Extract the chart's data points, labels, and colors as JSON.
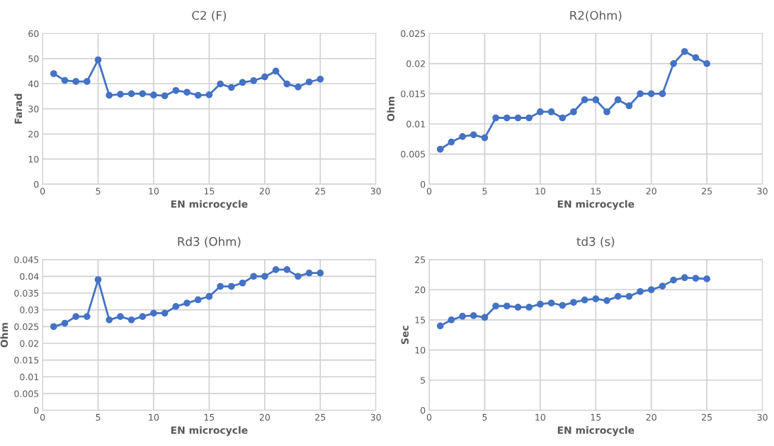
{
  "chart_data": [
    {
      "type": "line",
      "title": "C2 (F)",
      "xlabel": "EN microcycle",
      "ylabel": "Farad",
      "x": [
        1,
        2,
        3,
        4,
        5,
        6,
        7,
        8,
        9,
        10,
        11,
        12,
        13,
        14,
        15,
        16,
        17,
        18,
        19,
        20,
        21,
        22,
        23,
        24,
        25
      ],
      "series": [
        {
          "color": "#4472c4",
          "values": [
            44,
            41.3,
            40.9,
            40.9,
            49.5,
            35.4,
            35.8,
            36,
            36,
            35.5,
            35.2,
            37.3,
            36.6,
            35.4,
            35.6,
            39.9,
            38.5,
            40.5,
            41.2,
            42.7,
            45,
            39.9,
            38.7,
            40.7,
            41.8
          ]
        }
      ],
      "xlim": [
        0,
        30
      ],
      "xticks": [
        0,
        5,
        10,
        15,
        20,
        25,
        30
      ],
      "ylim": [
        0,
        60
      ],
      "yticks": [
        0,
        10,
        20,
        30,
        40,
        50,
        60
      ],
      "grid": true,
      "marker": "circle",
      "line_style": "solid"
    },
    {
      "type": "line",
      "title": "R2(Ohm)",
      "xlabel": "EN microcycle",
      "ylabel": "Ohm",
      "x": [
        1,
        2,
        3,
        4,
        5,
        6,
        7,
        8,
        9,
        10,
        11,
        12,
        13,
        14,
        15,
        16,
        17,
        18,
        19,
        20,
        21,
        22,
        23,
        24,
        25
      ],
      "series": [
        {
          "color": "#4472c4",
          "values": [
            0.0058,
            0.007,
            0.0079,
            0.0082,
            0.0077,
            0.011,
            0.011,
            0.011,
            0.011,
            0.012,
            0.012,
            0.011,
            0.012,
            0.014,
            0.014,
            0.012,
            0.014,
            0.013,
            0.015,
            0.015,
            0.015,
            0.02,
            0.022,
            0.021,
            0.02
          ]
        }
      ],
      "xlim": [
        0,
        30
      ],
      "xticks": [
        0,
        5,
        10,
        15,
        20,
        25,
        30
      ],
      "ylim": [
        0,
        0.025
      ],
      "yticks": [
        0,
        0.005,
        0.01,
        0.015,
        0.02,
        0.025
      ],
      "grid": true,
      "marker": "circle",
      "line_style": "solid"
    },
    {
      "type": "line",
      "title": "Rd3 (Ohm)",
      "xlabel": "EN microcycle",
      "ylabel": "Ohm",
      "x": [
        1,
        2,
        3,
        4,
        5,
        6,
        7,
        8,
        9,
        10,
        11,
        12,
        13,
        14,
        15,
        16,
        17,
        18,
        19,
        20,
        21,
        22,
        23,
        24,
        25
      ],
      "series": [
        {
          "color": "#4472c4",
          "values": [
            0.025,
            0.026,
            0.028,
            0.028,
            0.039,
            0.027,
            0.028,
            0.027,
            0.028,
            0.029,
            0.029,
            0.031,
            0.032,
            0.033,
            0.034,
            0.037,
            0.037,
            0.038,
            0.04,
            0.04,
            0.042,
            0.042,
            0.04,
            0.041,
            0.041
          ]
        }
      ],
      "xlim": [
        0,
        30
      ],
      "xticks": [
        0,
        5,
        10,
        15,
        20,
        25,
        30
      ],
      "ylim": [
        0,
        0.045
      ],
      "yticks": [
        0,
        0.005,
        0.01,
        0.015,
        0.02,
        0.025,
        0.03,
        0.035,
        0.04,
        0.045
      ],
      "grid": true,
      "marker": "circle",
      "line_style": "solid"
    },
    {
      "type": "line",
      "title": "td3 (s)",
      "xlabel": "EN microcycle",
      "ylabel": "Sec",
      "x": [
        1,
        2,
        3,
        4,
        5,
        6,
        7,
        8,
        9,
        10,
        11,
        12,
        13,
        14,
        15,
        16,
        17,
        18,
        19,
        20,
        21,
        22,
        23,
        24,
        25
      ],
      "series": [
        {
          "color": "#4472c4",
          "values": [
            14,
            15,
            15.6,
            15.7,
            15.4,
            17.3,
            17.3,
            17.1,
            17.1,
            17.6,
            17.8,
            17.4,
            17.9,
            18.3,
            18.5,
            18.2,
            18.9,
            18.9,
            19.7,
            20,
            20.6,
            21.6,
            22,
            21.9,
            21.8
          ]
        }
      ],
      "xlim": [
        0,
        30
      ],
      "xticks": [
        0,
        5,
        10,
        15,
        20,
        25,
        30
      ],
      "ylim": [
        0,
        25
      ],
      "yticks": [
        0,
        5,
        10,
        15,
        20,
        25
      ],
      "grid": true,
      "marker": "circle",
      "line_style": "solid"
    }
  ]
}
